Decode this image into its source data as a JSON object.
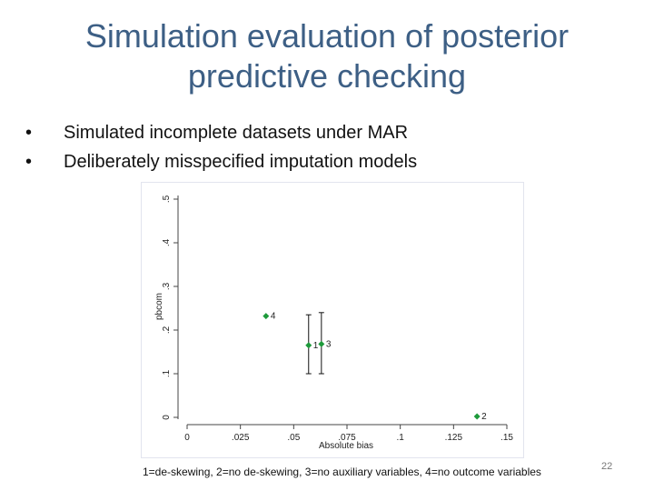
{
  "slide": {
    "title_line1": "Simulation evaluation of posterior",
    "title_line2": "predictive checking",
    "bullets": [
      "Simulated incomplete datasets under MAR",
      "Deliberately misspecified imputation models"
    ],
    "caption": "1=de-skewing, 2=no de-skewing, 3=no auxiliary variables, 4=no outcome variables",
    "page_number": "22"
  },
  "chart_data": {
    "type": "scatter",
    "xlabel": "Absolute bias",
    "ylabel": "pbcom",
    "x_ticks": [
      0,
      0.025,
      0.05,
      0.075,
      0.1,
      0.125,
      0.15
    ],
    "x_tick_labels": [
      "0",
      ".025",
      ".05",
      ".075",
      ".1",
      ".125",
      ".15"
    ],
    "xlim": [
      0,
      0.15
    ],
    "y_ticks": [
      0,
      0.1,
      0.2,
      0.3,
      0.4,
      0.5
    ],
    "y_tick_labels": [
      "0",
      ".1",
      ".2",
      ".3",
      ".4",
      ".5"
    ],
    "ylim": [
      0,
      0.5
    ],
    "marker_color": "#1e9a3b",
    "points": [
      {
        "label": "1",
        "x": 0.057,
        "y": 0.165,
        "err_low": 0.1,
        "err_high": 0.235
      },
      {
        "label": "2",
        "x": 0.136,
        "y": 0.002
      },
      {
        "label": "3",
        "x": 0.063,
        "y": 0.168,
        "err_low": 0.1,
        "err_high": 0.24
      },
      {
        "label": "4",
        "x": 0.037,
        "y": 0.232
      }
    ]
  }
}
